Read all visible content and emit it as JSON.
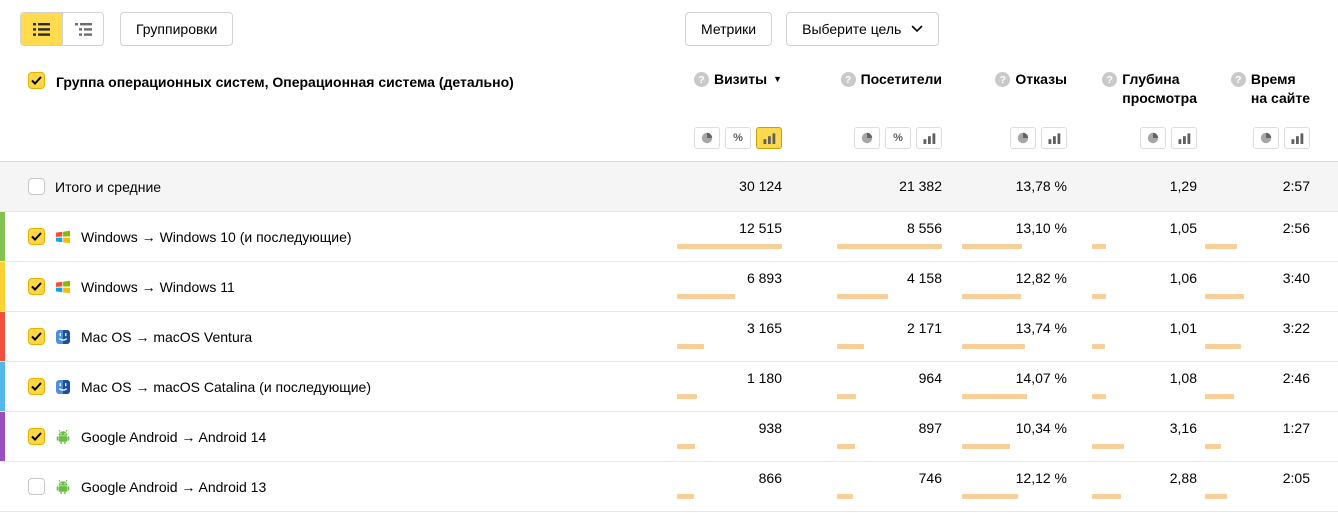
{
  "toolbar": {
    "groupings": "Группировки",
    "metrics": "Метрики",
    "goal": "Выберите цель"
  },
  "header": {
    "dimension": "Группа операционных систем, Операционная система (детально)",
    "columns": [
      {
        "key": "visits",
        "label": "Визиты",
        "line2": "",
        "sorted": true,
        "toggles": [
          "pie",
          "percent",
          "bar"
        ],
        "active": "bar"
      },
      {
        "key": "visitors",
        "label": "Посетители",
        "line2": "",
        "sorted": false,
        "toggles": [
          "pie",
          "percent",
          "bar"
        ],
        "active": ""
      },
      {
        "key": "bounce-rate",
        "label": "Отказы",
        "line2": "",
        "sorted": false,
        "toggles": [
          "pie",
          "bar"
        ],
        "active": ""
      },
      {
        "key": "page-depth",
        "label": "Глубина",
        "line2": "просмотра",
        "sorted": false,
        "toggles": [
          "pie",
          "bar"
        ],
        "active": ""
      },
      {
        "key": "time-on-site",
        "label": "Время",
        "line2": "на сайте",
        "sorted": false,
        "toggles": [
          "pie",
          "bar"
        ],
        "active": ""
      }
    ]
  },
  "totals": {
    "label": "Итого и средние",
    "checked": false,
    "values": [
      "30 124",
      "21 382",
      "13,78 %",
      "1,29",
      "2:57"
    ]
  },
  "rows": [
    {
      "label": "Windows → Windows 10 (и последующие)",
      "os": "windows",
      "checked": true,
      "stripe": "#84c150",
      "values": [
        "12 515",
        "8 556",
        "13,10 %",
        "1,05",
        "2:56"
      ],
      "bars": [
        100,
        100,
        57,
        13,
        30
      ]
    },
    {
      "label": "Windows → Windows 11",
      "os": "windows",
      "checked": true,
      "stripe": "#ffd234",
      "values": [
        "6 893",
        "4 158",
        "12,82 %",
        "1,06",
        "3:40"
      ],
      "bars": [
        55,
        49,
        56,
        13,
        37
      ]
    },
    {
      "label": "Mac OS → macOS Ventura",
      "os": "mac",
      "checked": true,
      "stripe": "#f2503c",
      "values": [
        "3 165",
        "2 171",
        "13,74 %",
        "1,01",
        "3:22"
      ],
      "bars": [
        26,
        26,
        60,
        12,
        34
      ]
    },
    {
      "label": "Mac OS → macOS Catalina (и последующие)",
      "os": "mac",
      "checked": true,
      "stripe": "#54b8ea",
      "values": [
        "1 180",
        "964",
        "14,07 %",
        "1,08",
        "2:46"
      ],
      "bars": [
        19,
        18,
        62,
        13,
        28
      ]
    },
    {
      "label": "Google Android → Android 14",
      "os": "android",
      "checked": true,
      "stripe": "#9a4fc0",
      "values": [
        "938",
        "897",
        "10,34 %",
        "3,16",
        "1:27"
      ],
      "bars": [
        17,
        17,
        46,
        30,
        15
      ]
    },
    {
      "label": "Google Android → Android 13",
      "os": "android",
      "checked": false,
      "stripe": "",
      "values": [
        "866",
        "746",
        "12,12 %",
        "2,88",
        "2:05"
      ],
      "bars": [
        16,
        15,
        53,
        28,
        21
      ]
    }
  ],
  "icons": {
    "view_modes": [
      "list-view-icon",
      "tree-view-icon"
    ],
    "column_help": "help-icon",
    "sort": "sort-desc-icon",
    "toggles": [
      "pie-chart-icon",
      "percent-icon",
      "bar-chart-icon"
    ],
    "os": [
      "windows-icon",
      "macos-icon",
      "android-icon"
    ],
    "goal_chevron": "chevron-down-icon"
  },
  "colors": {
    "accent": "#ffd643",
    "toggle_active": "#ffd94d",
    "bar": "#f9cf99",
    "totals_bg": "#f5f5f5"
  }
}
